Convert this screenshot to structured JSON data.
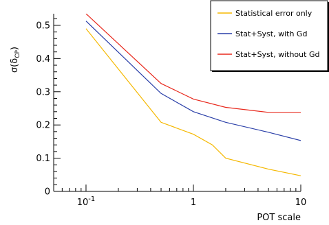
{
  "chart_data": {
    "type": "line",
    "xlabel": "POT scale",
    "ylabel_main": "σ(δ",
    "ylabel_sub": "CP",
    "ylabel_close": ")",
    "x_scale": "log",
    "xlim": [
      0.05,
      10
    ],
    "ylim": [
      0,
      0.535
    ],
    "x_ticks": [
      {
        "value": 0.1,
        "base": "10",
        "exp": "-1"
      },
      {
        "value": 1,
        "base": "1",
        "exp": ""
      },
      {
        "value": 10,
        "base": "10",
        "exp": ""
      }
    ],
    "y_ticks": [
      {
        "value": 0,
        "label": "0"
      },
      {
        "value": 0.1,
        "label": "0.1"
      },
      {
        "value": 0.2,
        "label": "0.2"
      },
      {
        "value": 0.3,
        "label": "0.3"
      },
      {
        "value": 0.4,
        "label": "0.4"
      },
      {
        "value": 0.5,
        "label": "0.5"
      }
    ],
    "grid": false,
    "legend_position": "top-right",
    "series": [
      {
        "name": "Statistical error only",
        "color": "#f5b800",
        "x": [
          0.1,
          0.5,
          1,
          1.5,
          2,
          5,
          10
        ],
        "y": [
          0.49,
          0.208,
          0.172,
          0.14,
          0.1,
          0.067,
          0.047
        ]
      },
      {
        "name": "Stat+Syst, with Gd",
        "color": "#2a3fa8",
        "x": [
          0.1,
          0.5,
          1,
          2,
          5,
          10
        ],
        "y": [
          0.513,
          0.295,
          0.24,
          0.208,
          0.178,
          0.153
        ]
      },
      {
        "name": "Stat+Syst, without Gd",
        "color": "#e8281c",
        "x": [
          0.1,
          0.5,
          1,
          2,
          5,
          10
        ],
        "y": [
          0.535,
          0.325,
          0.278,
          0.253,
          0.238,
          0.238
        ]
      }
    ]
  }
}
